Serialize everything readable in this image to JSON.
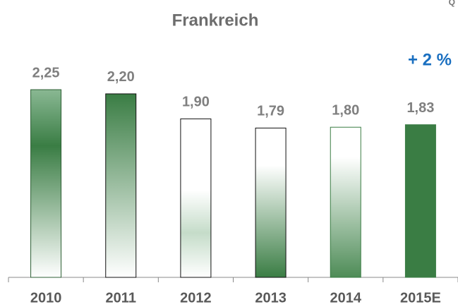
{
  "chart_data": {
    "type": "bar",
    "title": "Frankreich",
    "annotation": "+ 2 %",
    "corner_text": "Q",
    "categories": [
      "2010",
      "2011",
      "2012",
      "2013",
      "2014",
      "2015E"
    ],
    "values": [
      2.25,
      2.2,
      1.9,
      1.79,
      1.8,
      1.83
    ],
    "value_labels": [
      "2,25",
      "2,20",
      "1,90",
      "1,79",
      "1,80",
      "1,83"
    ],
    "color": "#3a7d44",
    "ylim": [
      0,
      2.5
    ]
  }
}
